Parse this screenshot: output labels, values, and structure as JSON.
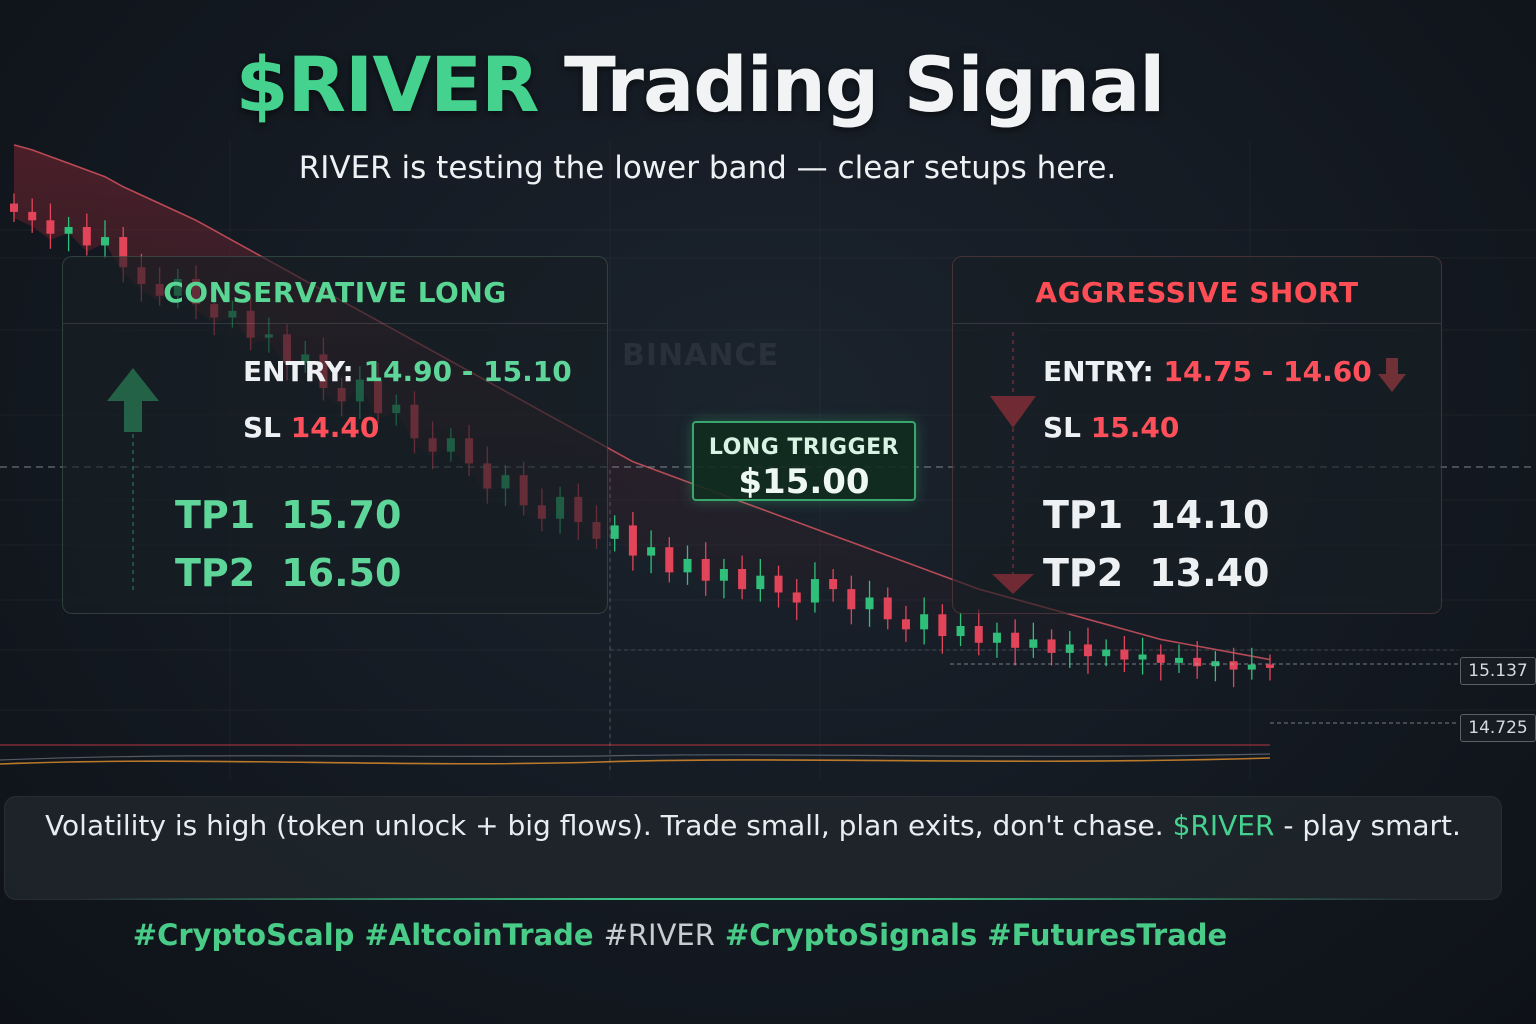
{
  "header": {
    "title_accent": "$RIVER",
    "title_rest": "Trading Signal",
    "subtitle": "RIVER is testing the lower band — clear setups here."
  },
  "long_panel": {
    "title": "CONSERVATIVE LONG",
    "entry_label": "ENTRY:",
    "entry_value": "14.90 - 15.10",
    "sl_label": "SL",
    "sl_value": "14.40",
    "tp1_label": "TP1",
    "tp1_value": "15.70",
    "tp2_label": "TP2",
    "tp2_value": "16.50"
  },
  "short_panel": {
    "title": "AGGRESSIVE SHORT",
    "entry_label": "ENTRY:",
    "entry_value": "14.75 - 14.60",
    "sl_label": "SL",
    "sl_value": "15.40",
    "tp1_label": "TP1",
    "tp1_value": "14.10",
    "tp2_label": "TP2",
    "tp2_value": "13.40"
  },
  "trigger": {
    "label": "LONG TRIGGER",
    "price": "$15.00"
  },
  "watermark": "BINANCE",
  "price_tags": {
    "upper": "15.137",
    "lower": "14.725"
  },
  "footer": {
    "text_before": "Volatility is high (token unlock + big flows). Trade small, plan exits, don't chase.",
    "river": "$RIVER",
    "text_after": "- play smart."
  },
  "hashtags": [
    {
      "text": "#CryptoScalp",
      "style": "green"
    },
    {
      "text": "#AltcoinTrade",
      "style": "green"
    },
    {
      "text": "#RIVER",
      "style": "gray"
    },
    {
      "text": "#CryptoSignals",
      "style": "green"
    },
    {
      "text": "#FuturesTrade",
      "style": "green"
    }
  ],
  "colors": {
    "bull": "#2fbf7a",
    "bear": "#e2455a",
    "band": "#e85a66",
    "band_fill": "#6a2330",
    "accent_green": "#45d28e",
    "accent_red": "#ff4d55"
  },
  "chart_data": {
    "type": "candlestick",
    "title": "",
    "xlabel": "",
    "ylabel": "",
    "ylim": [
      14.3,
      17.7
    ],
    "trigger_level": 15.0,
    "marked_prices": [
      15.137,
      14.725
    ],
    "closes": [
      17.45,
      17.4,
      17.32,
      17.36,
      17.25,
      17.3,
      17.12,
      17.02,
      16.95,
      17.05,
      16.9,
      16.82,
      16.86,
      16.7,
      16.72,
      16.55,
      16.6,
      16.4,
      16.32,
      16.45,
      16.25,
      16.3,
      16.1,
      16.02,
      16.1,
      15.95,
      15.8,
      15.88,
      15.7,
      15.62,
      15.75,
      15.6,
      15.5,
      15.58,
      15.4,
      15.45,
      15.3,
      15.38,
      15.25,
      15.32,
      15.2,
      15.28,
      15.18,
      15.12,
      15.26,
      15.2,
      15.08,
      15.15,
      15.02,
      14.96,
      15.05,
      14.92,
      14.98,
      14.88,
      14.94,
      14.85,
      14.9,
      14.82,
      14.87,
      14.8,
      14.84,
      14.78,
      14.81,
      14.76,
      14.79,
      14.74,
      14.77,
      14.72,
      14.75,
      14.73
    ],
    "upper_band": [
      17.85,
      17.82,
      17.78,
      17.74,
      17.7,
      17.66,
      17.6,
      17.55,
      17.5,
      17.45,
      17.4,
      17.34,
      17.28,
      17.22,
      17.16,
      17.1,
      17.04,
      16.98,
      16.92,
      16.86,
      16.8,
      16.74,
      16.68,
      16.62,
      16.56,
      16.5,
      16.44,
      16.38,
      16.32,
      16.26,
      16.2,
      16.14,
      16.08,
      16.02,
      15.96,
      15.92,
      15.88,
      15.84,
      15.8,
      15.76,
      15.72,
      15.68,
      15.64,
      15.6,
      15.56,
      15.52,
      15.48,
      15.44,
      15.4,
      15.36,
      15.32,
      15.28,
      15.24,
      15.2,
      15.17,
      15.14,
      15.11,
      15.08,
      15.05,
      15.02,
      14.99,
      14.96,
      14.93,
      14.9,
      14.88,
      14.86,
      14.84,
      14.82,
      14.8,
      14.78
    ]
  }
}
